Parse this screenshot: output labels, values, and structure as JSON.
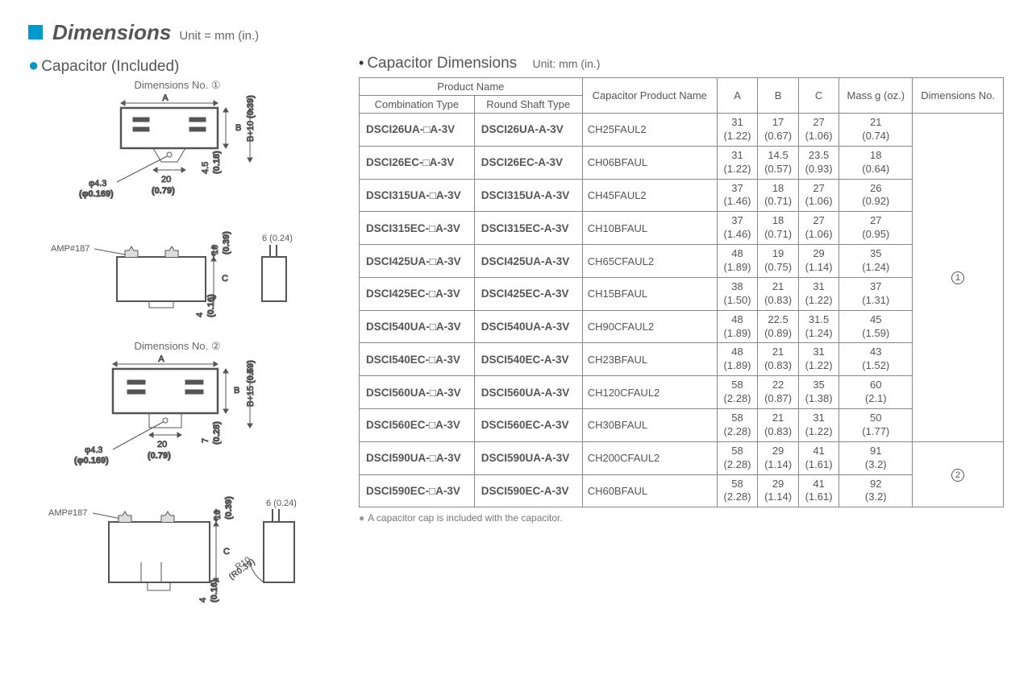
{
  "header": {
    "title": "Dimensions",
    "unit": "Unit = mm (in.)"
  },
  "left": {
    "heading": "Capacitor (Included)",
    "dim1_label": "Dimensions No. ①",
    "dim2_label": "Dimensions No. ②",
    "amp_label": "AMP#187",
    "phi_val": "φ4.3",
    "phi_in": "(φ0.169)",
    "w20": "20",
    "w20_in": "(0.79)",
    "h45": "4.5",
    "h45_in": "(0.18)",
    "b10": "B+10",
    "b10_in": "(0.39)",
    "ten": "10",
    "ten_in": "(0.39)",
    "six": "6 (0.24)",
    "four": "4",
    "four_in": "(0.16)",
    "seven": "7",
    "seven_in": "(0.28)",
    "b15": "B+15",
    "b15_in": "(0.59)",
    "r10": "R10",
    "r10_in": "(R0.39)",
    "letter_a": "A",
    "letter_b": "B",
    "letter_c": "C"
  },
  "tableHeading": "Capacitor Dimensions",
  "tableUnit": "Unit: mm (in.)",
  "footnote": "A capacitor cap is included with the capacitor.",
  "columns": {
    "prod": "Product Name",
    "combo": "Combination Type",
    "round": "Round Shaft Type",
    "cap": "Capacitor Product Name",
    "a": "A",
    "b": "B",
    "c": "C",
    "mass": "Mass g (oz.)",
    "dimno": "Dimensions No."
  },
  "rows": [
    {
      "combo": "DSCI26UA-□A-3V",
      "round": "DSCI26UA-A-3V",
      "cap": "CH25FAUL2",
      "a": "31",
      "ai": "(1.22)",
      "b": "17",
      "bi": "(0.67)",
      "c": "27",
      "ci": "(1.06)",
      "m": "21",
      "mi": "(0.74)"
    },
    {
      "combo": "DSCI26EC-□A-3V",
      "round": "DSCI26EC-A-3V",
      "cap": "CH06BFAUL",
      "a": "31",
      "ai": "(1.22)",
      "b": "14.5",
      "bi": "(0.57)",
      "c": "23.5",
      "ci": "(0.93)",
      "m": "18",
      "mi": "(0.64)"
    },
    {
      "combo": "DSCI315UA-□A-3V",
      "round": "DSCI315UA-A-3V",
      "cap": "CH45FAUL2",
      "a": "37",
      "ai": "(1.46)",
      "b": "18",
      "bi": "(0.71)",
      "c": "27",
      "ci": "(1.06)",
      "m": "26",
      "mi": "(0.92)"
    },
    {
      "combo": "DSCI315EC-□A-3V",
      "round": "DSCI315EC-A-3V",
      "cap": "CH10BFAUL",
      "a": "37",
      "ai": "(1.46)",
      "b": "18",
      "bi": "(0.71)",
      "c": "27",
      "ci": "(1.06)",
      "m": "27",
      "mi": "(0.95)"
    },
    {
      "combo": "DSCI425UA-□A-3V",
      "round": "DSCI425UA-A-3V",
      "cap": "CH65CFAUL2",
      "a": "48",
      "ai": "(1.89)",
      "b": "19",
      "bi": "(0.75)",
      "c": "29",
      "ci": "(1.14)",
      "m": "35",
      "mi": "(1.24)"
    },
    {
      "combo": "DSCI425EC-□A-3V",
      "round": "DSCI425EC-A-3V",
      "cap": "CH15BFAUL",
      "a": "38",
      "ai": "(1.50)",
      "b": "21",
      "bi": "(0.83)",
      "c": "31",
      "ci": "(1.22)",
      "m": "37",
      "mi": "(1.31)"
    },
    {
      "combo": "DSCI540UA-□A-3V",
      "round": "DSCI540UA-A-3V",
      "cap": "CH90CFAUL2",
      "a": "48",
      "ai": "(1.89)",
      "b": "22.5",
      "bi": "(0.89)",
      "c": "31.5",
      "ci": "(1.24)",
      "m": "45",
      "mi": "(1.59)"
    },
    {
      "combo": "DSCI540EC-□A-3V",
      "round": "DSCI540EC-A-3V",
      "cap": "CH23BFAUL",
      "a": "48",
      "ai": "(1.89)",
      "b": "21",
      "bi": "(0.83)",
      "c": "31",
      "ci": "(1.22)",
      "m": "43",
      "mi": "(1.52)"
    },
    {
      "combo": "DSCI560UA-□A-3V",
      "round": "DSCI560UA-A-3V",
      "cap": "CH120CFAUL2",
      "a": "58",
      "ai": "(2.28)",
      "b": "22",
      "bi": "(0.87)",
      "c": "35",
      "ci": "(1.38)",
      "m": "60",
      "mi": "(2.1)"
    },
    {
      "combo": "DSCI560EC-□A-3V",
      "round": "DSCI560EC-A-3V",
      "cap": "CH30BFAUL",
      "a": "58",
      "ai": "(2.28)",
      "b": "21",
      "bi": "(0.83)",
      "c": "31",
      "ci": "(1.22)",
      "m": "50",
      "mi": "(1.77)"
    },
    {
      "combo": "DSCI590UA-□A-3V",
      "round": "DSCI590UA-A-3V",
      "cap": "CH200CFAUL2",
      "a": "58",
      "ai": "(2.28)",
      "b": "29",
      "bi": "(1.14)",
      "c": "41",
      "ci": "(1.61)",
      "m": "91",
      "mi": "(3.2)"
    },
    {
      "combo": "DSCI590EC-□A-3V",
      "round": "DSCI590EC-A-3V",
      "cap": "CH60BFAUL",
      "a": "58",
      "ai": "(2.28)",
      "b": "29",
      "bi": "(1.14)",
      "c": "41",
      "ci": "(1.61)",
      "m": "92",
      "mi": "(3.2)"
    }
  ],
  "dimno1": "①",
  "dimno2": "②"
}
